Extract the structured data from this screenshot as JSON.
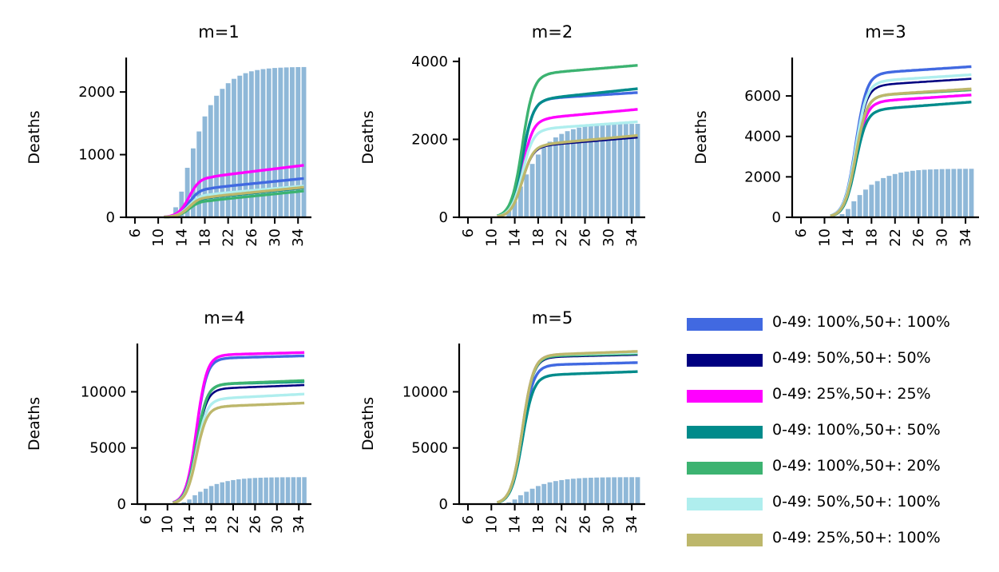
{
  "chart_data": {
    "type": "line",
    "x": [
      6,
      7,
      8,
      9,
      10,
      11,
      12,
      13,
      14,
      15,
      16,
      17,
      18,
      19,
      20,
      21,
      22,
      23,
      24,
      25,
      26,
      27,
      28,
      29,
      30,
      31,
      32,
      33,
      34,
      35
    ],
    "x_ticks": [
      6,
      10,
      14,
      18,
      22,
      26,
      30,
      34
    ],
    "ylabel": "Deaths",
    "observed": [
      0,
      0,
      0,
      0,
      0,
      5,
      20,
      160,
      410,
      790,
      1100,
      1370,
      1610,
      1790,
      1940,
      2050,
      2140,
      2210,
      2260,
      2300,
      2330,
      2350,
      2365,
      2375,
      2383,
      2388,
      2392,
      2395,
      2397,
      2398
    ],
    "series_meta": [
      {
        "name": "0-49: 100%,50+: 100%",
        "color": "#4169E1"
      },
      {
        "name": "0-49: 50%,50+: 50%",
        "color": "#000080"
      },
      {
        "name": "0-49: 25%,50+: 25%",
        "color": "#FF00FF"
      },
      {
        "name": "0-49: 100%,50+: 50%",
        "color": "#008B8B"
      },
      {
        "name": "0-49: 100%,50+: 20%",
        "color": "#3CB371"
      },
      {
        "name": "0-49: 50%,50+: 100%",
        "color": "#AFEEEE"
      },
      {
        "name": "0-49: 25%,50+: 100%",
        "color": "#BDB76B"
      }
    ],
    "panels": [
      {
        "title": "m=1",
        "ylim": [
          0,
          2550
        ],
        "yticks": [
          0,
          1000,
          2000
        ],
        "finals": [
          620,
          490,
          830,
          470,
          420,
          500,
          480
        ],
        "plateaus": [
          470,
          370,
          650,
          320,
          270,
          370,
          330
        ]
      },
      {
        "title": "m=2",
        "ylim": [
          0,
          4100
        ],
        "yticks": [
          0,
          2000,
          4000
        ],
        "finals": [
          3200,
          2050,
          2770,
          3300,
          3900,
          2450,
          2100
        ],
        "plateaus": [
          3050,
          1850,
          2550,
          3050,
          3700,
          2280,
          1880
        ]
      },
      {
        "title": "m=3",
        "ylim": [
          0,
          7900
        ],
        "yticks": [
          0,
          2000,
          4000,
          6000
        ],
        "finals": [
          7450,
          6850,
          6050,
          5700,
          6300,
          7050,
          6350
        ],
        "plateaus": [
          7150,
          6550,
          5750,
          5350,
          6050,
          6750,
          6050
        ]
      },
      {
        "title": "m=4",
        "ylim": [
          0,
          14300
        ],
        "yticks": [
          0,
          5000,
          10000
        ],
        "finals": [
          13200,
          10600,
          13500,
          10900,
          11000,
          9800,
          9000
        ],
        "plateaus": [
          13000,
          10300,
          13300,
          10700,
          10700,
          9400,
          8700
        ]
      },
      {
        "title": "m=5",
        "ylim": [
          0,
          14300
        ],
        "yticks": [
          0,
          5000,
          10000
        ],
        "finals": [
          12600,
          13300,
          13500,
          11800,
          13400,
          13500,
          13600
        ],
        "plateaus": [
          12400,
          13100,
          13300,
          11500,
          13200,
          13300,
          13300
        ]
      }
    ]
  }
}
